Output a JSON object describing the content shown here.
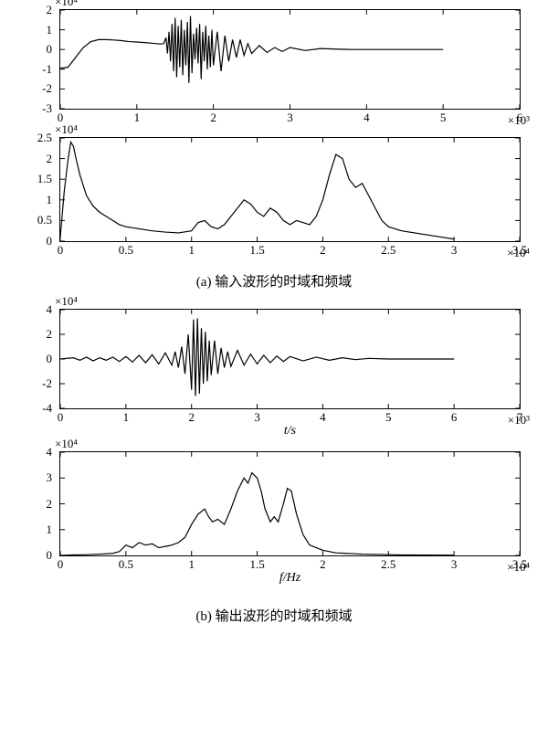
{
  "figure_a": {
    "caption": "(a)  输入波形的时域和频域",
    "time_chart": {
      "type": "line",
      "y_multiplier": "×10⁴",
      "x_multiplier": "×10³",
      "xlim": [
        0,
        6
      ],
      "ylim": [
        -3,
        2
      ],
      "xticks": [
        0,
        1,
        2,
        3,
        4,
        5,
        6
      ],
      "yticks": [
        -3,
        -2,
        -1,
        0,
        1,
        2
      ],
      "line_color": "#000000",
      "background": "#ffffff",
      "data": [
        [
          0,
          -0.95
        ],
        [
          0.1,
          -0.9
        ],
        [
          0.2,
          -0.4
        ],
        [
          0.3,
          0.1
        ],
        [
          0.4,
          0.4
        ],
        [
          0.5,
          0.5
        ],
        [
          0.6,
          0.5
        ],
        [
          0.7,
          0.48
        ],
        [
          0.8,
          0.45
        ],
        [
          0.9,
          0.4
        ],
        [
          1.0,
          0.38
        ],
        [
          1.1,
          0.35
        ],
        [
          1.2,
          0.32
        ],
        [
          1.3,
          0.28
        ],
        [
          1.35,
          0.3
        ],
        [
          1.38,
          0.6
        ],
        [
          1.4,
          -0.2
        ],
        [
          1.42,
          0.9
        ],
        [
          1.44,
          -0.6
        ],
        [
          1.46,
          1.3
        ],
        [
          1.48,
          -1.1
        ],
        [
          1.5,
          1.6
        ],
        [
          1.52,
          -1.4
        ],
        [
          1.54,
          1.2
        ],
        [
          1.56,
          -0.9
        ],
        [
          1.58,
          1.5
        ],
        [
          1.6,
          -1.3
        ],
        [
          1.62,
          1.0
        ],
        [
          1.64,
          -0.8
        ],
        [
          1.66,
          1.4
        ],
        [
          1.68,
          -1.7
        ],
        [
          1.7,
          1.7
        ],
        [
          1.72,
          -1.2
        ],
        [
          1.74,
          0.8
        ],
        [
          1.76,
          -0.5
        ],
        [
          1.78,
          1.1
        ],
        [
          1.8,
          -0.7
        ],
        [
          1.82,
          1.3
        ],
        [
          1.84,
          -1.5
        ],
        [
          1.86,
          0.9
        ],
        [
          1.88,
          -0.6
        ],
        [
          1.9,
          1.2
        ],
        [
          1.92,
          -1.0
        ],
        [
          1.94,
          0.7
        ],
        [
          1.96,
          -0.9
        ],
        [
          1.98,
          1.0
        ],
        [
          2.0,
          -0.8
        ],
        [
          2.05,
          0.9
        ],
        [
          2.1,
          -1.1
        ],
        [
          2.15,
          0.7
        ],
        [
          2.2,
          -0.6
        ],
        [
          2.25,
          0.5
        ],
        [
          2.3,
          -0.4
        ],
        [
          2.35,
          0.5
        ],
        [
          2.4,
          -0.3
        ],
        [
          2.45,
          0.3
        ],
        [
          2.5,
          -0.2
        ],
        [
          2.6,
          0.2
        ],
        [
          2.7,
          -0.15
        ],
        [
          2.8,
          0.1
        ],
        [
          2.9,
          -0.1
        ],
        [
          3.0,
          0.1
        ],
        [
          3.2,
          -0.05
        ],
        [
          3.4,
          0.05
        ],
        [
          3.6,
          0.02
        ],
        [
          3.8,
          0
        ],
        [
          4.0,
          0
        ],
        [
          4.5,
          0
        ],
        [
          5.0,
          0
        ]
      ]
    },
    "freq_chart": {
      "type": "line",
      "y_multiplier": "×10⁴",
      "x_multiplier": "×10⁴",
      "xlim": [
        0,
        3.5
      ],
      "ylim": [
        0,
        2.5
      ],
      "xticks": [
        0,
        0.5,
        1.0,
        1.5,
        2.0,
        2.5,
        3.0,
        3.5
      ],
      "yticks": [
        0,
        0.5,
        1.0,
        1.5,
        2.0,
        2.5
      ],
      "line_color": "#000000",
      "background": "#ffffff",
      "data": [
        [
          0,
          0.1
        ],
        [
          0.03,
          1.2
        ],
        [
          0.06,
          2.0
        ],
        [
          0.08,
          2.4
        ],
        [
          0.1,
          2.3
        ],
        [
          0.12,
          2.0
        ],
        [
          0.15,
          1.6
        ],
        [
          0.18,
          1.3
        ],
        [
          0.2,
          1.1
        ],
        [
          0.25,
          0.85
        ],
        [
          0.3,
          0.7
        ],
        [
          0.35,
          0.6
        ],
        [
          0.4,
          0.5
        ],
        [
          0.45,
          0.4
        ],
        [
          0.5,
          0.35
        ],
        [
          0.6,
          0.3
        ],
        [
          0.7,
          0.25
        ],
        [
          0.8,
          0.22
        ],
        [
          0.9,
          0.2
        ],
        [
          1.0,
          0.25
        ],
        [
          1.05,
          0.45
        ],
        [
          1.1,
          0.5
        ],
        [
          1.15,
          0.35
        ],
        [
          1.2,
          0.3
        ],
        [
          1.25,
          0.4
        ],
        [
          1.3,
          0.6
        ],
        [
          1.35,
          0.8
        ],
        [
          1.4,
          1.0
        ],
        [
          1.45,
          0.9
        ],
        [
          1.5,
          0.7
        ],
        [
          1.55,
          0.6
        ],
        [
          1.6,
          0.8
        ],
        [
          1.65,
          0.7
        ],
        [
          1.7,
          0.5
        ],
        [
          1.75,
          0.4
        ],
        [
          1.8,
          0.5
        ],
        [
          1.85,
          0.45
        ],
        [
          1.9,
          0.4
        ],
        [
          1.95,
          0.6
        ],
        [
          2.0,
          1.0
        ],
        [
          2.05,
          1.6
        ],
        [
          2.1,
          2.1
        ],
        [
          2.15,
          2.0
        ],
        [
          2.2,
          1.5
        ],
        [
          2.25,
          1.3
        ],
        [
          2.3,
          1.4
        ],
        [
          2.35,
          1.1
        ],
        [
          2.4,
          0.8
        ],
        [
          2.45,
          0.5
        ],
        [
          2.5,
          0.35
        ],
        [
          2.6,
          0.25
        ],
        [
          2.7,
          0.2
        ],
        [
          2.8,
          0.15
        ],
        [
          2.9,
          0.1
        ],
        [
          3.0,
          0.05
        ]
      ]
    }
  },
  "figure_b": {
    "caption": "(b)  输出波形的时域和频域",
    "time_chart": {
      "type": "line",
      "y_multiplier": "×10⁴",
      "x_multiplier": "×10³",
      "xlabel": "t/s",
      "xlim": [
        0,
        7
      ],
      "ylim": [
        -4,
        4
      ],
      "xticks": [
        0,
        1,
        2,
        3,
        4,
        5,
        6,
        7
      ],
      "yticks": [
        -4,
        -2,
        0,
        2,
        4
      ],
      "line_color": "#000000",
      "background": "#ffffff",
      "data": [
        [
          0,
          0
        ],
        [
          0.2,
          0.1
        ],
        [
          0.3,
          -0.1
        ],
        [
          0.4,
          0.15
        ],
        [
          0.5,
          -0.15
        ],
        [
          0.6,
          0.1
        ],
        [
          0.7,
          -0.1
        ],
        [
          0.8,
          0.15
        ],
        [
          0.9,
          -0.2
        ],
        [
          1.0,
          0.2
        ],
        [
          1.1,
          -0.25
        ],
        [
          1.2,
          0.3
        ],
        [
          1.3,
          -0.3
        ],
        [
          1.4,
          0.35
        ],
        [
          1.5,
          -0.4
        ],
        [
          1.6,
          0.5
        ],
        [
          1.7,
          -0.5
        ],
        [
          1.75,
          0.6
        ],
        [
          1.8,
          -0.7
        ],
        [
          1.85,
          1.0
        ],
        [
          1.9,
          -1.2
        ],
        [
          1.95,
          2.0
        ],
        [
          2.0,
          -2.5
        ],
        [
          2.03,
          3.2
        ],
        [
          2.06,
          -3.0
        ],
        [
          2.09,
          3.3
        ],
        [
          2.12,
          -2.8
        ],
        [
          2.15,
          2.5
        ],
        [
          2.18,
          -2.0
        ],
        [
          2.21,
          2.2
        ],
        [
          2.24,
          -1.8
        ],
        [
          2.27,
          1.5
        ],
        [
          2.3,
          -1.3
        ],
        [
          2.35,
          1.5
        ],
        [
          2.4,
          -1.2
        ],
        [
          2.45,
          0.9
        ],
        [
          2.5,
          -0.7
        ],
        [
          2.55,
          0.6
        ],
        [
          2.6,
          -0.6
        ],
        [
          2.7,
          0.7
        ],
        [
          2.8,
          -0.5
        ],
        [
          2.9,
          0.4
        ],
        [
          3.0,
          -0.4
        ],
        [
          3.1,
          0.3
        ],
        [
          3.2,
          -0.3
        ],
        [
          3.3,
          0.25
        ],
        [
          3.4,
          -0.2
        ],
        [
          3.5,
          0.2
        ],
        [
          3.7,
          -0.15
        ],
        [
          3.9,
          0.15
        ],
        [
          4.1,
          -0.1
        ],
        [
          4.3,
          0.1
        ],
        [
          4.5,
          -0.05
        ],
        [
          4.7,
          0.05
        ],
        [
          5.0,
          0
        ],
        [
          5.5,
          0
        ],
        [
          6.0,
          0
        ]
      ]
    },
    "freq_chart": {
      "type": "line",
      "y_multiplier": "×10⁴",
      "x_multiplier": "×10⁴",
      "xlabel": "f/Hz",
      "xlim": [
        0,
        3.5
      ],
      "ylim": [
        0,
        4
      ],
      "xticks": [
        0,
        0.5,
        1.0,
        1.5,
        2.0,
        2.5,
        3.0,
        3.5
      ],
      "yticks": [
        0,
        1,
        2,
        3,
        4
      ],
      "line_color": "#000000",
      "background": "#ffffff",
      "data": [
        [
          0,
          0
        ],
        [
          0.1,
          0.02
        ],
        [
          0.2,
          0.03
        ],
        [
          0.3,
          0.05
        ],
        [
          0.4,
          0.08
        ],
        [
          0.45,
          0.15
        ],
        [
          0.5,
          0.4
        ],
        [
          0.55,
          0.3
        ],
        [
          0.6,
          0.5
        ],
        [
          0.65,
          0.4
        ],
        [
          0.7,
          0.45
        ],
        [
          0.75,
          0.3
        ],
        [
          0.8,
          0.35
        ],
        [
          0.85,
          0.4
        ],
        [
          0.9,
          0.5
        ],
        [
          0.95,
          0.7
        ],
        [
          1.0,
          1.2
        ],
        [
          1.05,
          1.6
        ],
        [
          1.1,
          1.8
        ],
        [
          1.13,
          1.5
        ],
        [
          1.16,
          1.3
        ],
        [
          1.2,
          1.4
        ],
        [
          1.25,
          1.2
        ],
        [
          1.3,
          1.8
        ],
        [
          1.35,
          2.5
        ],
        [
          1.4,
          3.0
        ],
        [
          1.43,
          2.8
        ],
        [
          1.46,
          3.2
        ],
        [
          1.5,
          3.0
        ],
        [
          1.53,
          2.5
        ],
        [
          1.56,
          1.8
        ],
        [
          1.6,
          1.3
        ],
        [
          1.63,
          1.5
        ],
        [
          1.66,
          1.3
        ],
        [
          1.7,
          2.0
        ],
        [
          1.73,
          2.6
        ],
        [
          1.76,
          2.5
        ],
        [
          1.8,
          1.6
        ],
        [
          1.85,
          0.8
        ],
        [
          1.9,
          0.4
        ],
        [
          1.95,
          0.3
        ],
        [
          2.0,
          0.2
        ],
        [
          2.1,
          0.1
        ],
        [
          2.3,
          0.05
        ],
        [
          2.6,
          0.02
        ],
        [
          3.0,
          0.01
        ]
      ]
    }
  }
}
